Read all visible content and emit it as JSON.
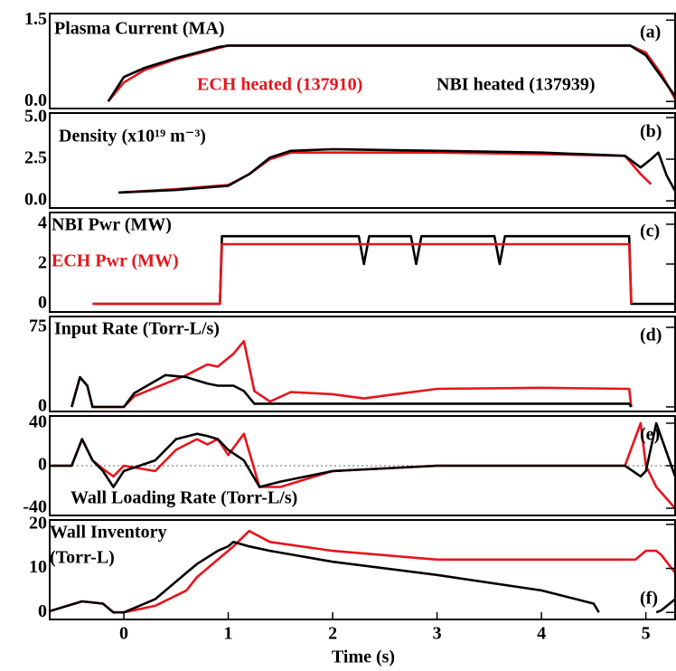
{
  "chart_data": [
    {
      "type": "line",
      "title": "Plasma Current (MA)",
      "panel_label": "(a)",
      "x": [
        -0.15,
        0,
        0.2,
        0.5,
        0.7,
        0.9,
        1.0,
        1.5,
        2,
        3,
        4,
        4.85,
        5.0,
        5.15,
        5.28
      ],
      "series": [
        {
          "name": "ECH heated (137910)",
          "color": "#e8141c",
          "values": [
            0,
            0.35,
            0.58,
            0.78,
            0.88,
            0.98,
            1.03,
            1.03,
            1.03,
            1.03,
            1.03,
            1.03,
            0.9,
            0.5,
            0.05
          ]
        },
        {
          "name": "NBI heated (137939)",
          "color": "#000000",
          "values": [
            0,
            0.45,
            0.62,
            0.8,
            0.9,
            1.0,
            1.03,
            1.03,
            1.03,
            1.03,
            1.03,
            1.03,
            0.85,
            0.45,
            0.1
          ]
        }
      ],
      "xlim": [
        -0.71,
        5.28
      ],
      "ylim": [
        -0.13,
        1.62
      ],
      "yticks": [
        {
          "value": 0,
          "label": "0.0"
        },
        {
          "value": 1.5,
          "label": "1.5"
        }
      ]
    },
    {
      "type": "line",
      "title": "Density (x10¹⁹ m⁻³)",
      "panel_label": "(b)",
      "x": [
        -0.05,
        0.5,
        1.0,
        1.2,
        1.4,
        1.6,
        2,
        3,
        4,
        4.8,
        4.95,
        5.05,
        5.12,
        5.2,
        5.28
      ],
      "series": [
        {
          "color": "#e8141c",
          "values": [
            0.5,
            0.7,
            0.95,
            1.6,
            2.5,
            2.9,
            2.9,
            2.9,
            2.8,
            2.7,
            1.6,
            1.0,
            null,
            null,
            null
          ]
        },
        {
          "color": "#000000",
          "values": [
            0.5,
            0.65,
            0.9,
            1.6,
            2.6,
            3.0,
            3.1,
            3.0,
            2.9,
            2.7,
            2.0,
            2.5,
            2.9,
            1.5,
            0.6
          ]
        }
      ],
      "xlim": [
        -0.71,
        5.28
      ],
      "ylim": [
        -0.43,
        5.27
      ],
      "yticks": [
        {
          "value": 0,
          "label": "0.0"
        },
        {
          "value": 2.5,
          "label": "2.5"
        },
        {
          "value": 5,
          "label": "5.0"
        }
      ]
    },
    {
      "type": "line",
      "panel_label": "(c)",
      "x": [
        -0.3,
        0.92,
        0.94,
        2.25,
        2.3,
        2.35,
        2.75,
        2.8,
        2.85,
        3.55,
        3.6,
        3.65,
        4.84,
        4.86,
        5.28
      ],
      "series": [
        {
          "name": "NBI Pwr (MW)",
          "color": "#000000",
          "values": [
            0,
            0,
            3.4,
            3.4,
            2.0,
            3.4,
            3.4,
            2.0,
            3.4,
            3.4,
            2.0,
            3.4,
            3.4,
            0,
            0
          ]
        },
        {
          "name": "ECH Pwr (MW)",
          "color": "#e8141c",
          "values": [
            0,
            0,
            3.0,
            3.0,
            3.0,
            3.0,
            3.0,
            3.0,
            3.0,
            3.0,
            3.0,
            3.0,
            3.0,
            0,
            null
          ]
        }
      ],
      "xlim": [
        -0.71,
        5.28
      ],
      "ylim": [
        -0.41,
        4.59
      ],
      "yticks": [
        0,
        2,
        4
      ]
    },
    {
      "type": "line",
      "title": "Input Rate (Torr-L/s)",
      "panel_label": "(d)",
      "x": [
        -0.75,
        -0.5,
        -0.42,
        -0.35,
        -0.3,
        0,
        0.1,
        0.4,
        0.6,
        0.8,
        0.9,
        1.05,
        1.15,
        1.25,
        1.4,
        1.6,
        2,
        2.3,
        2.6,
        3,
        4,
        4.84,
        4.86,
        5.28
      ],
      "series": [
        {
          "color": "#e8141c",
          "values": [
            null,
            0,
            28,
            20,
            0,
            0,
            10,
            22,
            30,
            40,
            38,
            50,
            62,
            15,
            5,
            14,
            12,
            8,
            12,
            17,
            18,
            17,
            0,
            null
          ]
        },
        {
          "color": "#000000",
          "values": [
            null,
            0,
            28,
            20,
            0,
            0,
            13,
            30,
            28,
            22,
            20,
            20,
            15,
            3,
            3,
            3,
            3,
            3,
            3,
            3,
            3,
            3,
            0,
            null
          ]
        }
      ],
      "xlim": [
        -0.71,
        5.28
      ],
      "ylim": [
        -4.3,
        85.2
      ],
      "yticks": [
        0,
        75
      ]
    },
    {
      "type": "line",
      "title": "Wall Loading Rate (Torr-L/s)",
      "panel_label": "(e)",
      "x": [
        -0.75,
        -0.5,
        -0.4,
        -0.3,
        -0.2,
        -0.1,
        0,
        0.3,
        0.5,
        0.7,
        0.8,
        0.9,
        1.0,
        1.15,
        1.3,
        1.5,
        2,
        3,
        4,
        4.8,
        4.95,
        5.0,
        5.1,
        5.28
      ],
      "series": [
        {
          "color": "#e8141c",
          "values": [
            0,
            0,
            25,
            5,
            -3,
            -10,
            0,
            -5,
            15,
            25,
            20,
            25,
            10,
            30,
            -20,
            -20,
            -5,
            0,
            0,
            0,
            40,
            0,
            -20,
            -40
          ]
        },
        {
          "color": "#000000",
          "values": [
            0,
            0,
            25,
            5,
            -5,
            -20,
            -5,
            5,
            25,
            30,
            28,
            25,
            15,
            5,
            -20,
            -15,
            -5,
            0,
            0,
            0,
            -10,
            -5,
            40,
            -10
          ]
        }
      ],
      "xlim": [
        -0.71,
        5.28
      ],
      "ylim": [
        -46.8,
        46.8
      ],
      "yticks": [
        -40,
        0,
        40
      ]
    },
    {
      "type": "line",
      "title": "Wall Inventory",
      "subtitle": "(Torr-L)",
      "panel_label": "(f)",
      "x": [
        -0.75,
        -0.4,
        -0.2,
        -0.1,
        0,
        0.3,
        0.6,
        0.7,
        0.9,
        1.0,
        1.05,
        1.2,
        1.4,
        2,
        3,
        4,
        4.5,
        4.55,
        4.9,
        5.0,
        5.1,
        5.15,
        5.28
      ],
      "series": [
        {
          "color": "#e8141c",
          "values": [
            0,
            2.5,
            2,
            0,
            0,
            1.5,
            5,
            8,
            12,
            14,
            15,
            18.5,
            16,
            14,
            12,
            12,
            12,
            12,
            12,
            14,
            14,
            13,
            9
          ]
        },
        {
          "color": "#000000",
          "values": [
            0,
            2.5,
            2,
            0,
            0,
            3,
            9,
            11,
            14,
            15,
            16,
            15,
            14,
            11.5,
            8.5,
            5,
            2,
            0,
            null,
            null,
            0,
            0.5,
            3
          ]
        }
      ],
      "xlim": [
        -0.71,
        5.28
      ],
      "ylim": [
        -1.6,
        21
      ],
      "yticks": [
        0,
        10,
        20
      ],
      "xticks": [
        0,
        1,
        2,
        3,
        4,
        5
      ],
      "xlabel": "Time (s)"
    }
  ]
}
